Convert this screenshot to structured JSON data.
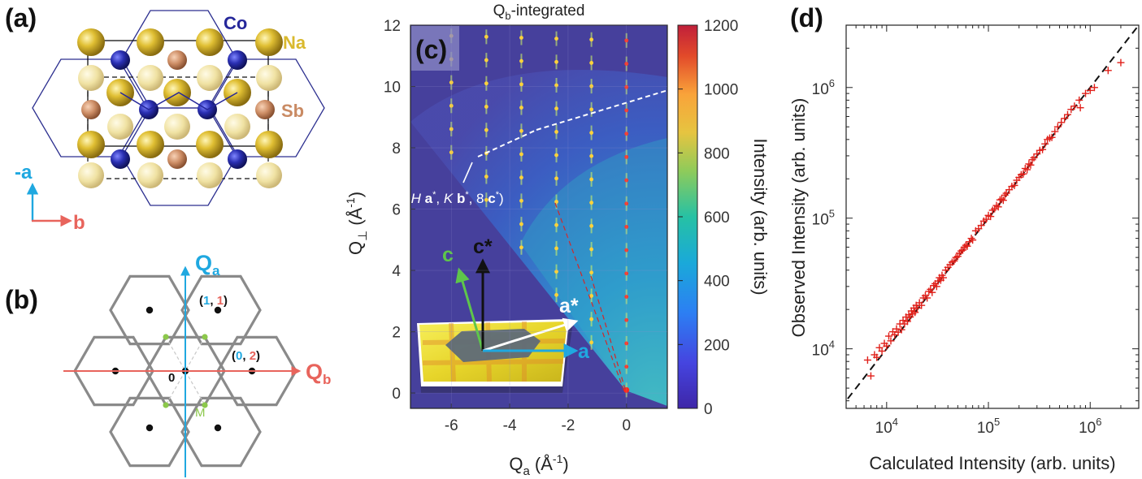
{
  "panels": {
    "a": {
      "letter": "(a)",
      "labels": {
        "co": "Co",
        "na": "Na",
        "sb": "Sb",
        "minus_a": "-a",
        "b": "b"
      },
      "colors": {
        "na": "#d9b92e",
        "na_light": "#efe3a6",
        "co": "#25279a",
        "sb": "#c98a63",
        "axis_a": "#1fa8e0",
        "axis_b": "#e8645c"
      }
    },
    "b": {
      "letter": "(b)",
      "labels": {
        "qa": "Q",
        "qa_sub": "a",
        "qb": "Q",
        "qb_sub": "b",
        "origin": "0",
        "m_point": "M",
        "pt11_open": "(",
        "pt11_h": "1",
        "pt11_sep": ", ",
        "pt11_k": "1",
        "pt11_close": ")",
        "pt02_open": "(",
        "pt02_h": "0",
        "pt02_sep": ", ",
        "pt02_k": "2",
        "pt02_close": ")"
      },
      "colors": {
        "qa": "#1fa8e0",
        "qb": "#e8645c",
        "m": "#8cc84b",
        "hex": "#8a8a8a"
      }
    },
    "c": {
      "letter": "(c)",
      "title_main": "Q",
      "title_sub": "b",
      "title_rest": "-integrated",
      "xlabel_main": "Q",
      "xlabel_sub": "a",
      "xlabel_unit": " (Å",
      "xlabel_sup": "-1",
      "xlabel_close": ")",
      "ylabel_main": "Q",
      "ylabel_sub": "⊥",
      "ylabel_unit": " (Å",
      "ylabel_sup": "-1",
      "ylabel_close": ")",
      "colorbar_label": "Intensity (arb. units)",
      "annotation": {
        "open": "(",
        "h": "H",
        "a": " a",
        "a_star": "*",
        "sep1": ", ",
        "k": "K",
        "b": " b",
        "b_star": "*",
        "sep2": ", 8 ",
        "c": "c",
        "c_star": "*",
        "close": ")"
      },
      "crystal_labels": {
        "c": "c",
        "c_star": "c*",
        "a_star": "a*",
        "a": "a"
      },
      "colors": {
        "c": "#5ec64a",
        "c_star": "#111111",
        "a_star": "#ffffff",
        "a": "#1fa8e0"
      }
    },
    "d": {
      "letter": "(d)"
    }
  },
  "chart_data": [
    {
      "type": "heatmap",
      "title": "Qb-integrated",
      "xlabel": "Qa (Å-1)",
      "ylabel": "Q⊥ (Å-1)",
      "xlim": [
        -7.4,
        1.4
      ],
      "ylim": [
        -0.5,
        12
      ],
      "xticks": [
        -6,
        -4,
        -2,
        0
      ],
      "yticks": [
        0,
        2,
        4,
        6,
        8,
        10,
        12
      ],
      "colorbar": {
        "label": "Intensity (arb. units)",
        "range": [
          0,
          1200
        ],
        "ticks": [
          0,
          200,
          400,
          600,
          800,
          1000,
          1200
        ]
      },
      "bragg_columns_qa": [
        0,
        -1.2,
        -2.4,
        -3.6,
        -4.8,
        -6.0
      ],
      "bragg_spacing_qperp": 0.76
    },
    {
      "type": "scatter",
      "xlabel": "Calculated Intensity (arb. units)",
      "ylabel": "Observed Intensity (arb. units)",
      "xscale": "log",
      "yscale": "log",
      "xlim": [
        4000,
        3000000
      ],
      "ylim": [
        3500,
        3000000
      ],
      "xticks": [
        10000,
        100000,
        1000000
      ],
      "yticks": [
        10000,
        100000,
        1000000
      ],
      "xtick_labels": [
        {
          "base": "10",
          "exp": "4"
        },
        {
          "base": "10",
          "exp": "5"
        },
        {
          "base": "10",
          "exp": "6"
        }
      ],
      "ytick_labels": [
        {
          "base": "10",
          "exp": "4"
        },
        {
          "base": "10",
          "exp": "5"
        },
        {
          "base": "10",
          "exp": "6"
        }
      ],
      "reference_line": "y = x",
      "marker": "+",
      "marker_color": "#e0201a",
      "points": [
        [
          6500,
          8200
        ],
        [
          7000,
          6200
        ],
        [
          7600,
          9000
        ],
        [
          8000,
          8600
        ],
        [
          8500,
          10200
        ],
        [
          9000,
          9600
        ],
        [
          9500,
          11000
        ],
        [
          10000,
          10500
        ],
        [
          10500,
          12500
        ],
        [
          11000,
          11500
        ],
        [
          11500,
          13500
        ],
        [
          12000,
          12800
        ],
        [
          12500,
          14200
        ],
        [
          13000,
          13400
        ],
        [
          13500,
          15500
        ],
        [
          14000,
          14000
        ],
        [
          14500,
          16500
        ],
        [
          15000,
          15500
        ],
        [
          15500,
          17500
        ],
        [
          16000,
          16200
        ],
        [
          16500,
          18200
        ],
        [
          17000,
          17500
        ],
        [
          17500,
          19500
        ],
        [
          18000,
          18500
        ],
        [
          18500,
          20500
        ],
        [
          19000,
          19000
        ],
        [
          19500,
          21500
        ],
        [
          20000,
          20500
        ],
        [
          21000,
          22500
        ],
        [
          22000,
          21500
        ],
        [
          23000,
          24500
        ],
        [
          24000,
          25500
        ],
        [
          25000,
          24500
        ],
        [
          26000,
          27500
        ],
        [
          27000,
          28500
        ],
        [
          28000,
          27000
        ],
        [
          29000,
          30500
        ],
        [
          30000,
          31500
        ],
        [
          31000,
          30000
        ],
        [
          32000,
          33000
        ],
        [
          33000,
          35000
        ],
        [
          34000,
          33500
        ],
        [
          35000,
          36500
        ],
        [
          36000,
          35000
        ],
        [
          38000,
          40000
        ],
        [
          40000,
          42000
        ],
        [
          42000,
          44000
        ],
        [
          44000,
          46000
        ],
        [
          46000,
          47000
        ],
        [
          48000,
          50000
        ],
        [
          50000,
          51000
        ],
        [
          52000,
          54000
        ],
        [
          54000,
          56000
        ],
        [
          56000,
          57000
        ],
        [
          58000,
          60000
        ],
        [
          60000,
          62000
        ],
        [
          62000,
          61000
        ],
        [
          65000,
          66000
        ],
        [
          68000,
          70000
        ],
        [
          70000,
          68000
        ],
        [
          75000,
          80000
        ],
        [
          80000,
          83000
        ],
        [
          85000,
          88000
        ],
        [
          90000,
          95000
        ],
        [
          95000,
          98000
        ],
        [
          100000,
          105000
        ],
        [
          105000,
          103000
        ],
        [
          110000,
          115000
        ],
        [
          115000,
          118000
        ],
        [
          120000,
          125000
        ],
        [
          125000,
          122000
        ],
        [
          130000,
          138000
        ],
        [
          135000,
          140000
        ],
        [
          140000,
          137000
        ],
        [
          145000,
          150000
        ],
        [
          150000,
          155000
        ],
        [
          160000,
          165000
        ],
        [
          170000,
          175000
        ],
        [
          180000,
          178000
        ],
        [
          190000,
          195000
        ],
        [
          200000,
          205000
        ],
        [
          210000,
          215000
        ],
        [
          220000,
          218000
        ],
        [
          230000,
          240000
        ],
        [
          240000,
          235000
        ],
        [
          250000,
          260000
        ],
        [
          260000,
          255000
        ],
        [
          270000,
          280000
        ],
        [
          280000,
          290000
        ],
        [
          300000,
          310000
        ],
        [
          320000,
          330000
        ],
        [
          340000,
          335000
        ],
        [
          360000,
          370000
        ],
        [
          380000,
          400000
        ],
        [
          400000,
          410000
        ],
        [
          420000,
          415000
        ],
        [
          450000,
          460000
        ],
        [
          480000,
          500000
        ],
        [
          520000,
          540000
        ],
        [
          560000,
          580000
        ],
        [
          600000,
          620000
        ],
        [
          650000,
          680000
        ],
        [
          700000,
          720000
        ],
        [
          780000,
          800000
        ],
        [
          800000,
          700000
        ],
        [
          900000,
          900000
        ],
        [
          1000000,
          950000
        ],
        [
          1100000,
          1000000
        ],
        [
          1500000,
          1350000
        ],
        [
          2000000,
          1550000
        ]
      ]
    }
  ]
}
